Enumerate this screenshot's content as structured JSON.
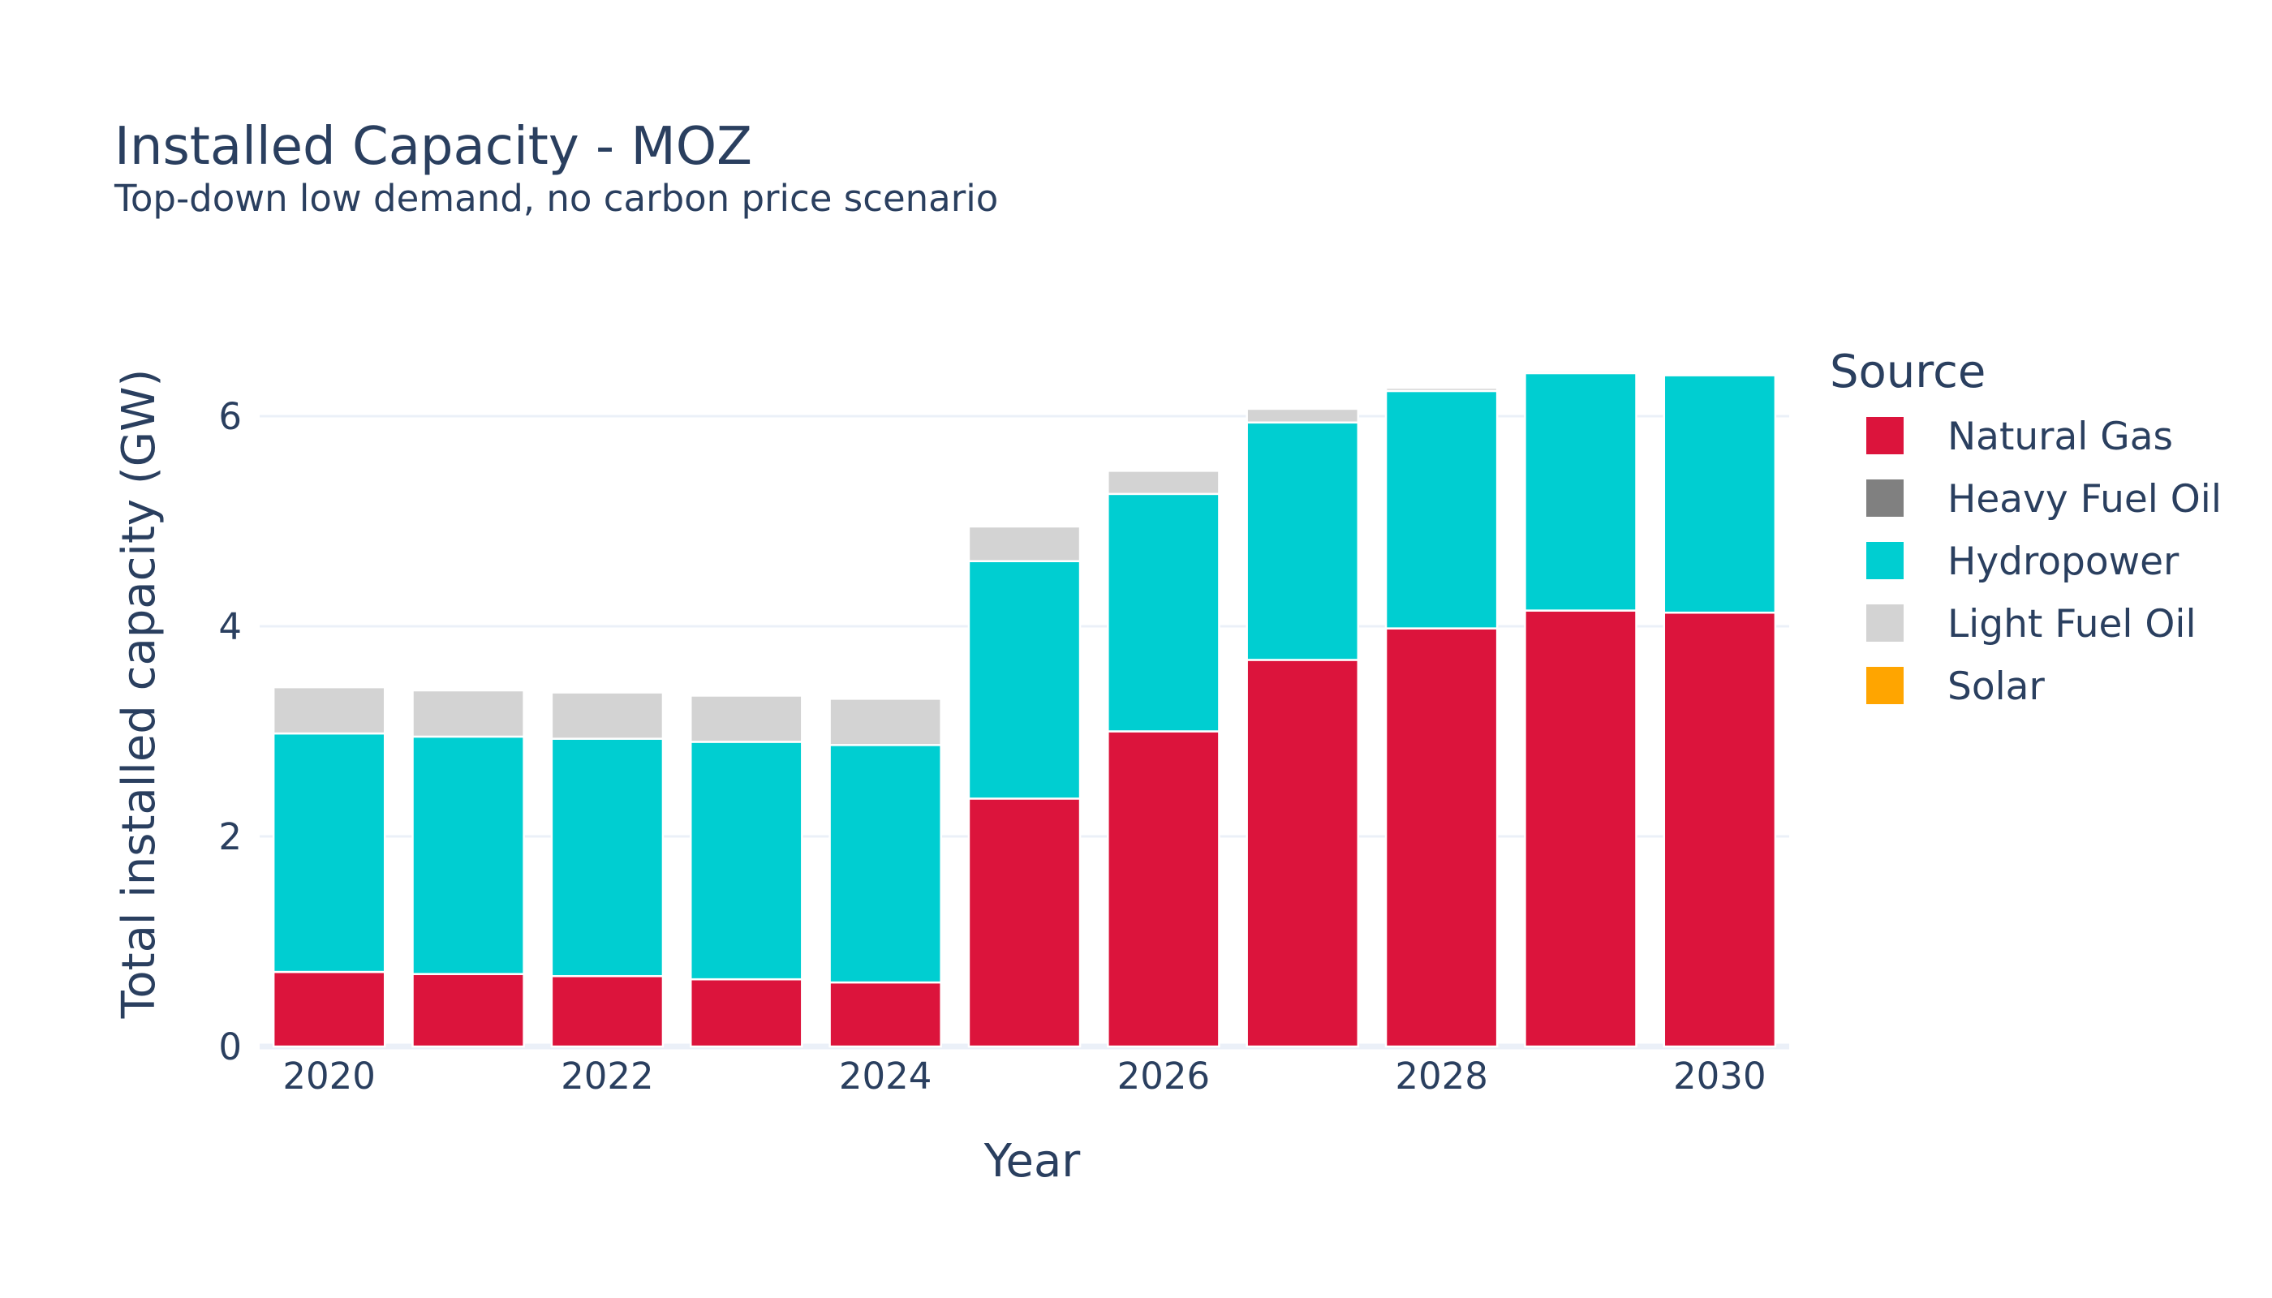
{
  "chart_data": {
    "type": "bar",
    "stacked": true,
    "title": "Installed Capacity - MOZ",
    "subtitle": "Top-down low demand, no carbon price scenario",
    "xlabel": "Year",
    "ylabel": "Total installed capacity (GW)",
    "ylim": [
      0,
      6.95
    ],
    "y_ticks": [
      0,
      2,
      4,
      6
    ],
    "x_ticks": [
      2020,
      2022,
      2024,
      2026,
      2028,
      2030
    ],
    "grid": true,
    "legend_title": "Source",
    "legend_position": "right",
    "x": [
      2020,
      2021,
      2022,
      2023,
      2024,
      2025,
      2026,
      2027,
      2028,
      2029,
      2030
    ],
    "series": [
      {
        "name": "Natural Gas",
        "color": "#dc143c",
        "values": [
          0.71,
          0.69,
          0.67,
          0.64,
          0.61,
          2.36,
          3.0,
          3.68,
          3.98,
          4.15,
          4.13
        ]
      },
      {
        "name": "Heavy Fuel Oil",
        "color": "#808080",
        "values": [
          0,
          0,
          0,
          0,
          0,
          0,
          0,
          0,
          0,
          0,
          0
        ]
      },
      {
        "name": "Hydropower",
        "color": "#00ced1",
        "values": [
          2.27,
          2.26,
          2.26,
          2.26,
          2.26,
          2.26,
          2.26,
          2.26,
          2.26,
          2.26,
          2.26
        ]
      },
      {
        "name": "Light Fuel Oil",
        "color": "#d3d3d3",
        "values": [
          0.44,
          0.44,
          0.44,
          0.44,
          0.44,
          0.33,
          0.22,
          0.13,
          0.03,
          0.02,
          0.01
        ]
      },
      {
        "name": "Solar",
        "color": "#ffa500",
        "values": [
          0,
          0,
          0,
          0,
          0,
          0,
          0,
          0,
          0,
          0,
          0
        ]
      }
    ]
  }
}
